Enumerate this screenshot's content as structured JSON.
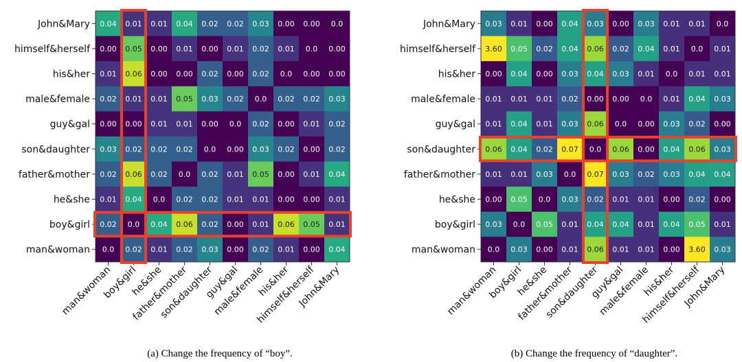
{
  "chart_data": [
    {
      "type": "heatmap",
      "caption": "(a) Change the frequency of “boy”.",
      "row_labels": [
        "John&Mary",
        "himself&herself",
        "his&her",
        "male&female",
        "guy&gal",
        "son&daughter",
        "father&mother",
        "he&she",
        "boy&girl",
        "man&woman"
      ],
      "col_labels": [
        "man&woman",
        "boy&girl",
        "he&she",
        "father&mother",
        "son&daughter",
        "guy&gal",
        "male&female",
        "his&her",
        "himself&herself",
        "John&Mary"
      ],
      "cell_labels": [
        [
          "0.04",
          "0.01",
          "0.01",
          "0.04",
          "0.02",
          "0.02",
          "0.03",
          "0.00",
          "0.00",
          "0.0"
        ],
        [
          "0.00",
          "0.05",
          "0.00",
          "0.01",
          "0.00",
          "0.01",
          "0.02",
          "0.01",
          "0.0",
          "0.00"
        ],
        [
          "0.01",
          "0.06",
          "0.00",
          "0.00",
          "0.02",
          "0.00",
          "0.02",
          "0.0",
          "0.00",
          "0.00"
        ],
        [
          "0.02",
          "0.01",
          "0.01",
          "0.05",
          "0.03",
          "0.02",
          "0.0",
          "0.02",
          "0.02",
          "0.03"
        ],
        [
          "0.00",
          "0.00",
          "0.01",
          "0.01",
          "0.00",
          "0.0",
          "0.02",
          "0.00",
          "0.01",
          "0.02"
        ],
        [
          "0.03",
          "0.02",
          "0.02",
          "0.02",
          "0.0",
          "0.00",
          "0.03",
          "0.02",
          "0.00",
          "0.02"
        ],
        [
          "0.02",
          "0.06",
          "0.02",
          "0.0",
          "0.02",
          "0.01",
          "0.05",
          "0.00",
          "0.01",
          "0.04"
        ],
        [
          "0.01",
          "0.04",
          "0.0",
          "0.02",
          "0.02",
          "0.01",
          "0.01",
          "0.00",
          "0.00",
          "0.01"
        ],
        [
          "0.02",
          "0.0",
          "0.04",
          "0.06",
          "0.02",
          "0.00",
          "0.01",
          "0.06",
          "0.05",
          "0.01"
        ],
        [
          "0.0",
          "0.02",
          "0.01",
          "0.02",
          "0.03",
          "0.00",
          "0.02",
          "0.01",
          "0.00",
          "0.04"
        ]
      ],
      "color_scale": {
        "name": "viridis",
        "min": 0,
        "max": 0.065
      },
      "highlight": {
        "row": "boy&girl",
        "column": "boy&girl",
        "color": "#e8412c"
      }
    },
    {
      "type": "heatmap",
      "caption": "(b) Change the frequency of “daughter”.",
      "row_labels": [
        "John&Mary",
        "himself&herself",
        "his&her",
        "male&female",
        "guy&gal",
        "son&daughter",
        "father&mother",
        "he&she",
        "boy&girl",
        "man&woman"
      ],
      "col_labels": [
        "man&woman",
        "boy&girl",
        "he&she",
        "father&mother",
        "son&daughter",
        "guy&gal",
        "male&female",
        "his&her",
        "himself&herself",
        "John&Mary"
      ],
      "cell_labels": [
        [
          "0.03",
          "0.01",
          "0.00",
          "0.04",
          "0.03",
          "0.00",
          "0.03",
          "0.01",
          "0.01",
          "0.0"
        ],
        [
          "3.60",
          "0.05",
          "0.02",
          "0.04",
          "0.06",
          "0.02",
          "0.04",
          "0.01",
          "0.0",
          "0.01"
        ],
        [
          "0.00",
          "0.04",
          "0.00",
          "0.03",
          "0.04",
          "0.03",
          "0.01",
          "0.0",
          "0.01",
          "0.01"
        ],
        [
          "0.01",
          "0.01",
          "0.01",
          "0.02",
          "0.00",
          "0.00",
          "0.0",
          "0.01",
          "0.04",
          "0.03"
        ],
        [
          "0.01",
          "0.04",
          "0.01",
          "0.03",
          "0.06",
          "0.0",
          "0.00",
          "0.03",
          "0.02",
          "0.00"
        ],
        [
          "0.06",
          "0.04",
          "0.02",
          "0.07",
          "0.0",
          "0.06",
          "0.00",
          "0.04",
          "0.06",
          "0.03"
        ],
        [
          "0.01",
          "0.01",
          "0.03",
          "0.0",
          "0.07",
          "0.03",
          "0.02",
          "0.03",
          "0.04",
          "0.04"
        ],
        [
          "0.00",
          "0.05",
          "0.0",
          "0.03",
          "0.02",
          "0.01",
          "0.01",
          "0.00",
          "0.02",
          "0.00"
        ],
        [
          "0.03",
          "0.0",
          "0.05",
          "0.01",
          "0.04",
          "0.04",
          "0.01",
          "0.04",
          "0.05",
          "0.01"
        ],
        [
          "0.0",
          "0.03",
          "0.00",
          "0.01",
          "0.06",
          "0.01",
          "0.01",
          "0.00",
          "3.60",
          "0.03"
        ]
      ],
      "color_scale": {
        "name": "viridis",
        "min": 0,
        "max": 0.07
      },
      "highlight": {
        "row": "son&daughter",
        "column": "son&daughter",
        "color": "#e8412c"
      }
    }
  ]
}
